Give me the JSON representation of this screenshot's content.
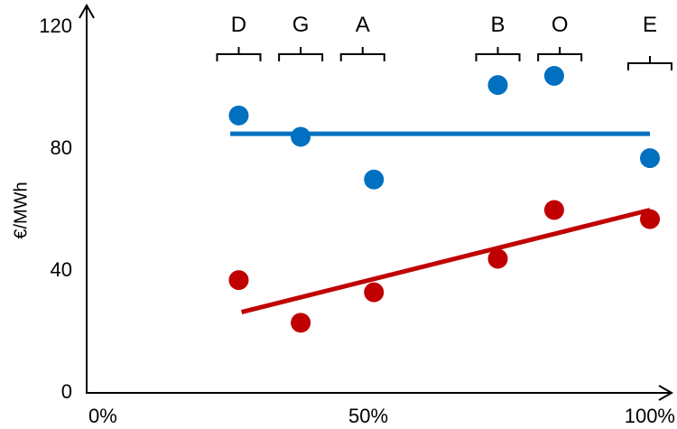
{
  "chart_data": {
    "type": "scatter",
    "title": "",
    "xlabel": "",
    "ylabel": "€/MWh",
    "xlim": [
      0,
      100
    ],
    "ylim": [
      0,
      120
    ],
    "grid": false,
    "x_ticks": [
      {
        "value": 0,
        "label": "0%"
      },
      {
        "value": 50,
        "label": "50%"
      },
      {
        "value": 100,
        "label": "100%"
      }
    ],
    "y_ticks": [
      {
        "value": 0,
        "label": "0"
      },
      {
        "value": 40,
        "label": "40"
      },
      {
        "value": 80,
        "label": "80"
      },
      {
        "value": 120,
        "label": "120"
      }
    ],
    "groups": [
      {
        "label": "D",
        "x": 27,
        "bracket_center": 27
      },
      {
        "label": "G",
        "x": 38,
        "bracket_center": 38
      },
      {
        "label": "A",
        "x": 51,
        "bracket_center": 49
      },
      {
        "label": "B",
        "x": 73,
        "bracket_center": 73
      },
      {
        "label": "O",
        "x": 83,
        "bracket_center": 84
      },
      {
        "label": "E",
        "x": 100,
        "bracket_center": 100
      }
    ],
    "series": [
      {
        "name": "blue",
        "color": "#0070C0",
        "points": [
          {
            "group": "D",
            "x": 27,
            "y": 91
          },
          {
            "group": "G",
            "x": 38,
            "y": 84
          },
          {
            "group": "A",
            "x": 51,
            "y": 70
          },
          {
            "group": "B",
            "x": 73,
            "y": 101
          },
          {
            "group": "O",
            "x": 83,
            "y": 104
          },
          {
            "group": "E",
            "x": 100,
            "y": 77
          }
        ],
        "trend": {
          "x": [
            25.5,
            100
          ],
          "y": [
            85,
            85
          ]
        }
      },
      {
        "name": "red",
        "color": "#C00000",
        "points": [
          {
            "group": "D",
            "x": 27,
            "y": 37
          },
          {
            "group": "G",
            "x": 38,
            "y": 23
          },
          {
            "group": "A",
            "x": 51,
            "y": 33
          },
          {
            "group": "B",
            "x": 73,
            "y": 44
          },
          {
            "group": "O",
            "x": 83,
            "y": 60
          },
          {
            "group": "E",
            "x": 100,
            "y": 57
          }
        ],
        "trend": {
          "x": [
            27.5,
            100
          ],
          "y": [
            26.5,
            60
          ]
        }
      }
    ]
  }
}
